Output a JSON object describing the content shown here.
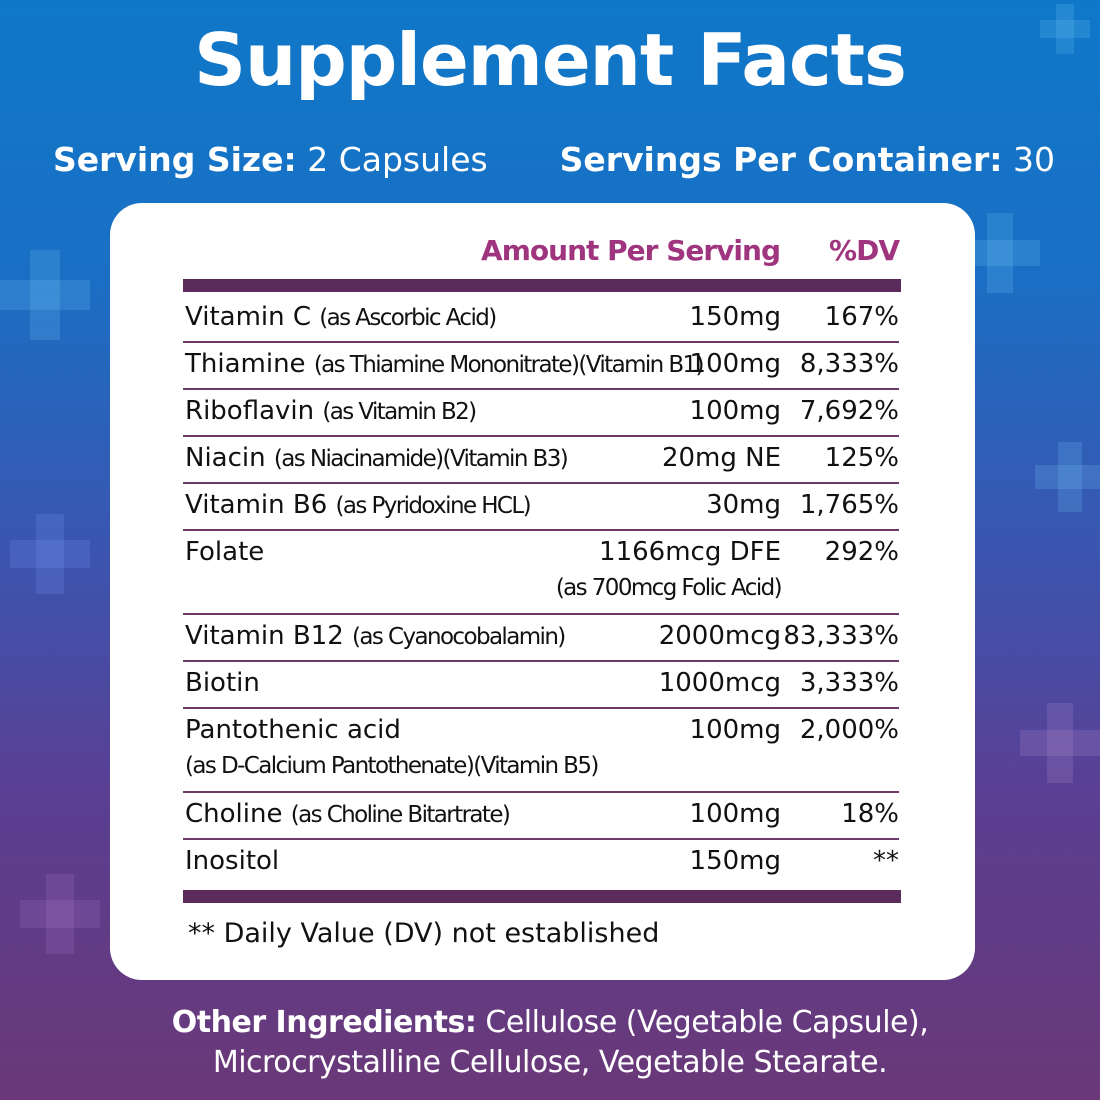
{
  "title": "Supplement Facts",
  "serving_size": {
    "label": "Serving Size:",
    "value": "2 Capsules"
  },
  "servings_per_container": {
    "label": "Servings Per Container:",
    "value": "30"
  },
  "table": {
    "header_amount": "Amount Per Serving",
    "header_dv": "%DV",
    "rows": [
      {
        "name": "Vitamin C",
        "detail": "(as Ascorbic Acid)",
        "amount": "150mg",
        "dv": "167%"
      },
      {
        "name": "Thiamine",
        "detail": "(as Thiamine Mononitrate)(Vitamin B1)",
        "amount": "100mg",
        "dv": "8,333%"
      },
      {
        "name": "Riboflavin",
        "detail": "(as Vitamin B2)",
        "amount": "100mg",
        "dv": "7,692%"
      },
      {
        "name": "Niacin",
        "detail": "(as Niacinamide)(Vitamin B3)",
        "amount": "20mg NE",
        "dv": "125%"
      },
      {
        "name": "Vitamin B6",
        "detail": "(as Pyridoxine HCL)",
        "amount": "30mg",
        "dv": "1,765%"
      },
      {
        "name": "Folate",
        "detail": "",
        "amount": "1166mcg DFE",
        "amount_detail": "(as 700mcg Folic Acid)",
        "dv": "292%"
      },
      {
        "name": "Vitamin B12",
        "detail": "(as Cyanocobalamin)",
        "amount": "2000mcg",
        "dv": "83,333%"
      },
      {
        "name": "Biotin",
        "detail": "",
        "amount": "1000mcg",
        "dv": "3,333%"
      },
      {
        "name": "Pantothenic acid",
        "detail": "",
        "detail_line2": "(as D-Calcium Pantothenate)(Vitamin B5)",
        "amount": "100mg",
        "dv": "2,000%"
      },
      {
        "name": "Choline",
        "detail": "(as Choline Bitartrate)",
        "amount": "100mg",
        "dv": "18%"
      },
      {
        "name": "Inositol",
        "detail": "",
        "amount": "150mg",
        "dv": "**"
      }
    ],
    "footnote": "** Daily Value (DV) not established"
  },
  "other_ingredients": {
    "label": "Other Ingredients:",
    "line1": "Cellulose (Vegetable Capsule),",
    "line2": "Microcrystalline Cellulose, Vegetable Stearate."
  },
  "colors": {
    "header": "#a0357f",
    "bar": "#5b2b5b"
  }
}
